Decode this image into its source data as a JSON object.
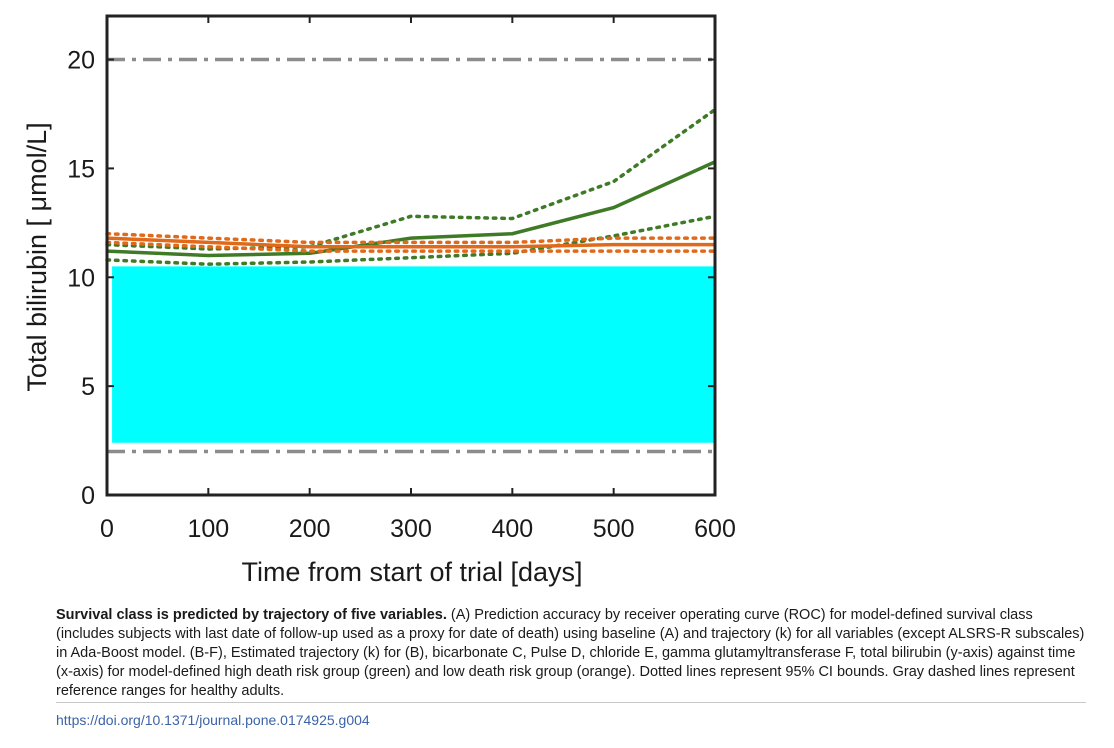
{
  "chart_data": {
    "type": "line",
    "title": "",
    "xlabel": "Time from start of trial [days]",
    "ylabel": "Total bilirubin [ μmol/L]",
    "xlim": [
      0,
      600
    ],
    "ylim": [
      0,
      22
    ],
    "xticks": [
      0,
      100,
      200,
      300,
      400,
      500,
      600
    ],
    "yticks": [
      0,
      5,
      10,
      15,
      20
    ],
    "grid": false,
    "legend": "none",
    "reference_lines": [
      {
        "y": 20,
        "style": "dash-dot",
        "color": "#8c8c8c"
      },
      {
        "y": 2,
        "style": "dash-dot",
        "color": "#8c8c8c"
      }
    ],
    "x": [
      0,
      100,
      200,
      300,
      400,
      500,
      600
    ],
    "series": [
      {
        "group": "high risk",
        "style": "solid",
        "color": "#3f7a26",
        "values": [
          11.2,
          11.0,
          11.1,
          11.8,
          12.0,
          13.2,
          15.3
        ]
      },
      {
        "group": "high risk",
        "style": "dotted",
        "color": "#3f7a26",
        "values": [
          11.5,
          11.3,
          11.4,
          12.8,
          12.7,
          14.4,
          17.7
        ]
      },
      {
        "group": "high risk",
        "style": "dotted",
        "color": "#3f7a26",
        "values": [
          10.8,
          10.6,
          10.7,
          10.9,
          11.1,
          11.9,
          12.8
        ]
      },
      {
        "group": "low risk",
        "style": "solid",
        "color": "#e06a1b",
        "values": [
          11.8,
          11.6,
          11.4,
          11.4,
          11.4,
          11.5,
          11.5
        ]
      },
      {
        "group": "low risk",
        "style": "dotted",
        "color": "#e06a1b",
        "values": [
          12.0,
          11.8,
          11.6,
          11.6,
          11.6,
          11.8,
          11.8
        ]
      },
      {
        "group": "low risk",
        "style": "dotted",
        "color": "#e06a1b",
        "values": [
          11.6,
          11.4,
          11.2,
          11.2,
          11.2,
          11.2,
          11.2
        ]
      }
    ],
    "occlusion": {
      "color": "#00ffff",
      "x": [
        5,
        600
      ],
      "y": [
        2.4,
        10.5
      ]
    }
  },
  "caption": {
    "bold": "Survival class is predicted by trajectory of five variables.",
    "text": " (A) Prediction accuracy by receiver operating curve (ROC) for model-defined survival class (includes subjects with last date of follow-up used as a proxy for date of death) using baseline (A) and trajectory (k) for all variables (except ALSRS-R subscales) in Ada-Boost model. (B-F), Estimated trajectory (k) for (B), bicarbonate C, Pulse D, chloride E, gamma glutamyltransferase F, total bilirubin (y-axis) against time (x-axis) for model-defined high death risk group (green) and low death risk group (orange). Dotted lines represent 95% CI bounds. Gray dashed lines represent reference ranges for healthy adults."
  },
  "doi": "https://doi.org/10.1371/journal.pone.0174925.g004"
}
